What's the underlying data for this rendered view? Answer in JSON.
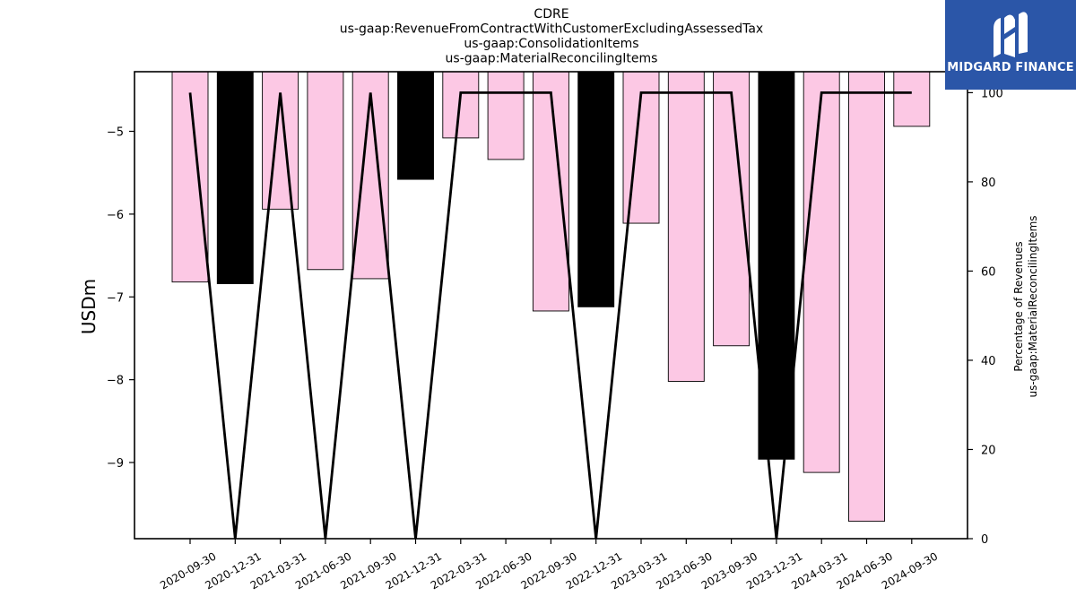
{
  "chart_data": {
    "type": "bar",
    "title": [
      "CDRE",
      "us-gaap:RevenueFromContractWithCustomerExcludingAssessedTax",
      "us-gaap:ConsolidationItems",
      "us-gaap:MaterialReconcilingItems"
    ],
    "categories": [
      "2020-09-30",
      "2020-12-31",
      "2021-03-31",
      "2021-06-30",
      "2021-09-30",
      "2021-12-31",
      "2022-03-31",
      "2022-06-30",
      "2022-09-30",
      "2022-12-31",
      "2023-03-31",
      "2023-06-30",
      "2023-09-30",
      "2023-12-31",
      "2024-03-31",
      "2024-06-30",
      "2024-09-30"
    ],
    "values": [
      -6.82,
      -6.84,
      -5.94,
      -6.67,
      -6.78,
      -5.58,
      -5.08,
      -5.34,
      -7.17,
      -7.12,
      -6.11,
      -8.02,
      -7.59,
      -8.96,
      -9.12,
      -9.71,
      -4.94
    ],
    "bar_colors": [
      "#fcc8e4",
      "#000000",
      "#fcc8e4",
      "#fcc8e4",
      "#fcc8e4",
      "#000000",
      "#fcc8e4",
      "#fcc8e4",
      "#fcc8e4",
      "#000000",
      "#fcc8e4",
      "#fcc8e4",
      "#fcc8e4",
      "#000000",
      "#fcc8e4",
      "#fcc8e4",
      "#fcc8e4"
    ],
    "line_values": [
      100,
      0,
      100,
      0,
      100,
      0,
      100,
      100,
      100,
      0,
      100,
      100,
      100,
      0,
      100,
      100,
      100
    ],
    "line_color": "#000000",
    "ylabel": "USDm",
    "y2label": [
      "Percentage of Revenues",
      "us-gaap:MaterialReconcilingItems"
    ],
    "ylim": [
      -9.92,
      -4.28
    ],
    "yticks": [
      -9,
      -8,
      -7,
      -6,
      -5
    ],
    "y2lim": [
      0,
      104.7
    ],
    "y2ticks": [
      0,
      20,
      40,
      60,
      80,
      100
    ],
    "grid": false
  },
  "logo": {
    "text": "MIDGARD FINANCE",
    "color": "#2b56a8"
  }
}
